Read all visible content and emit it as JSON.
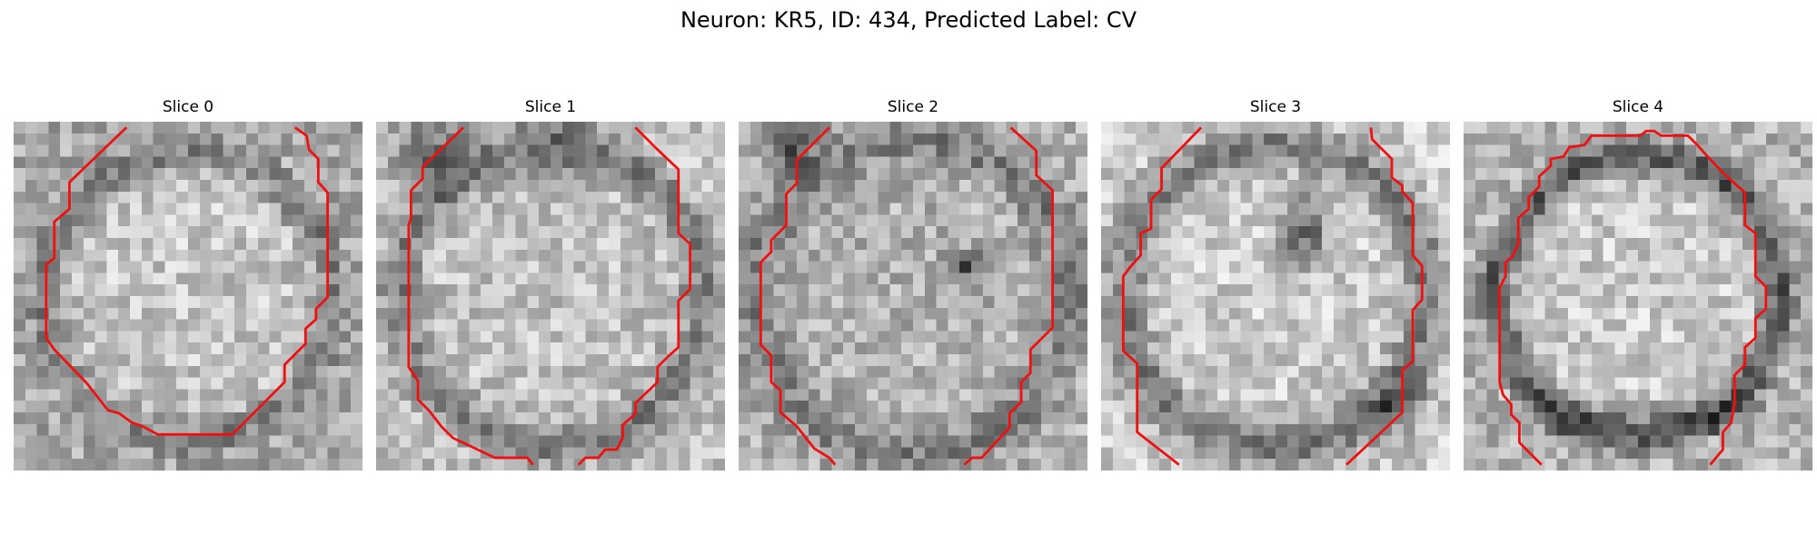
{
  "figure": {
    "title": "Neuron: KR5, ID: 434, Predicted Label: CV"
  },
  "panels": [
    {
      "title": "Slice 0",
      "pattern": "ring"
    },
    {
      "title": "Slice 1",
      "pattern": "dark-top-left"
    },
    {
      "title": "Slice 2",
      "pattern": "speckled-dark-spot"
    },
    {
      "title": "Slice 3",
      "pattern": "dark-notch"
    },
    {
      "title": "Slice 4",
      "pattern": "thick-ring"
    }
  ],
  "colors": {
    "contour": "#ee1111",
    "background": "#ffffff",
    "text": "#000000"
  }
}
